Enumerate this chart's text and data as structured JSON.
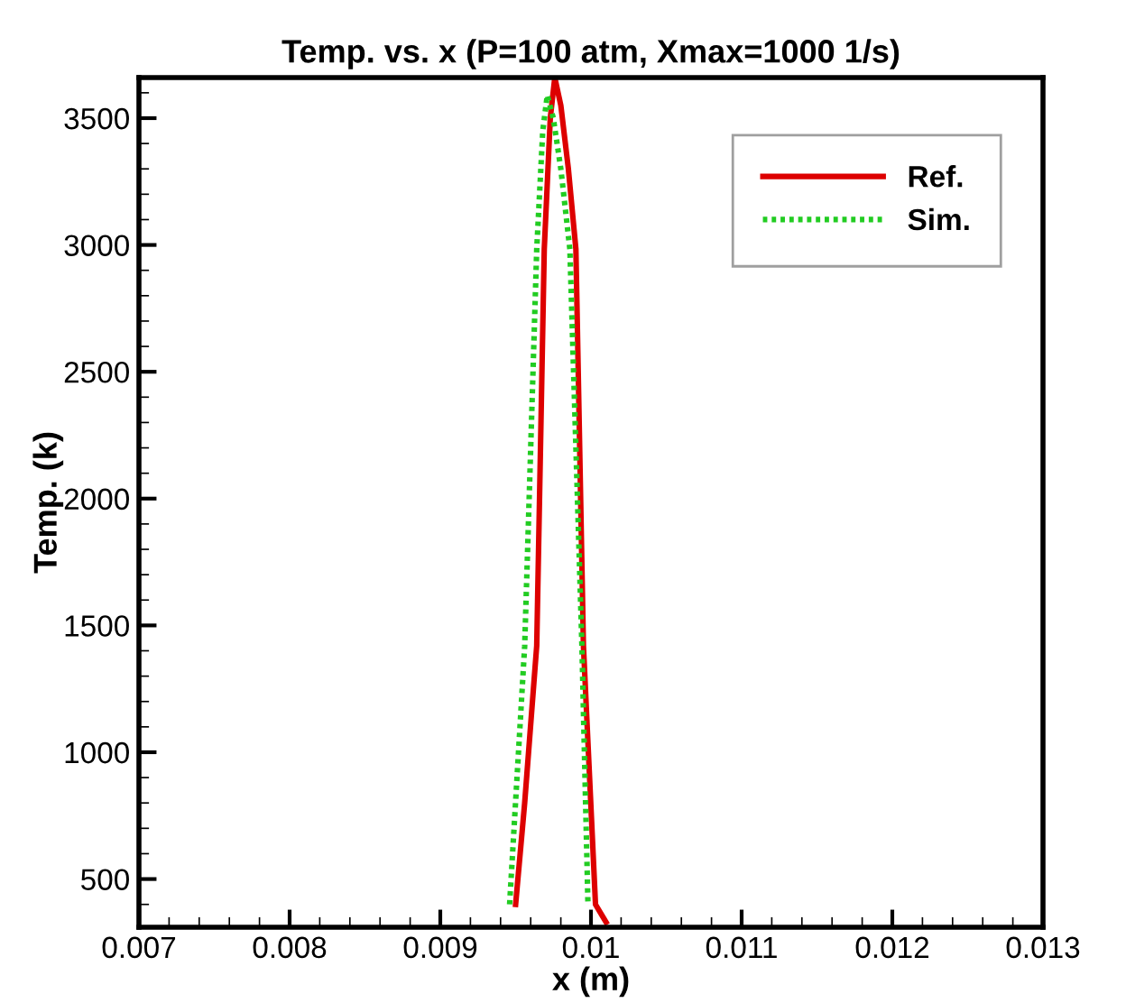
{
  "chart_data": {
    "type": "line",
    "title": "Temp. vs. x (P=100 atm, Xmax=1000 1/s)",
    "xlabel": "x (m)",
    "ylabel": "Temp. (k)",
    "xlim": [
      0.007,
      0.013
    ],
    "xticks": [
      0.007,
      0.008,
      0.009,
      0.01,
      0.011,
      0.012,
      0.013
    ],
    "ylim": [
      310,
      3660
    ],
    "yticks": [
      500,
      1000,
      1500,
      2000,
      2500,
      3000,
      3500
    ],
    "grid": false,
    "legend": "top right",
    "series": [
      {
        "name": "Ref.",
        "color": "#dd0000",
        "line_style": "solid",
        "x": [
          0.0095,
          0.00956,
          0.00964,
          0.00969,
          0.00973,
          0.00976,
          0.0098,
          0.00985,
          0.0099,
          0.00995,
          0.01003,
          0.0101
        ],
        "values": [
          400,
          800,
          1420,
          2983,
          3500,
          3660,
          3550,
          3300,
          2983,
          1420,
          400,
          330
        ]
      },
      {
        "name": "Sim.",
        "color": "#22cc22",
        "line_style": "dotted",
        "x": [
          0.00946,
          0.00956,
          0.00964,
          0.00968,
          0.00971,
          0.00975,
          0.0098,
          0.00986,
          0.00994,
          0.00998
        ],
        "values": [
          400,
          1418,
          2983,
          3450,
          3590,
          3500,
          3300,
          2983,
          1418,
          400
        ]
      }
    ]
  }
}
